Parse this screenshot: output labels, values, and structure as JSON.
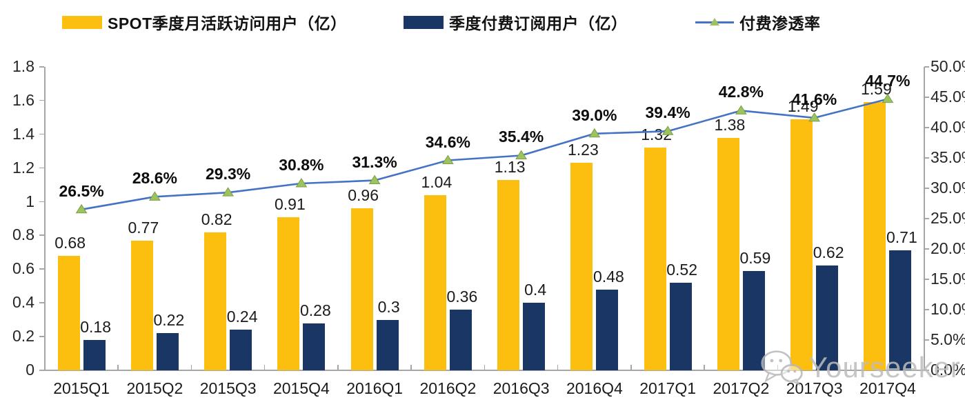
{
  "legend": {
    "items": [
      {
        "label": "SPOT季度月活跃访问用户（亿）",
        "swatch": "bar",
        "color": "#FCBF10"
      },
      {
        "label": "季度付费订阅用户（亿）",
        "swatch": "bar",
        "color": "#1A3665"
      },
      {
        "label": "付费渗透率",
        "swatch": "line",
        "line_color": "#4472C4",
        "marker": "triangle-up",
        "marker_color": "#9DC360"
      }
    ]
  },
  "chart_data": {
    "type": "combo-bar-line",
    "categories": [
      "2015Q1",
      "2015Q2",
      "2015Q3",
      "2015Q4",
      "2016Q1",
      "2016Q2",
      "2016Q3",
      "2016Q4",
      "2017Q1",
      "2017Q2",
      "2017Q3",
      "2017Q4"
    ],
    "series": [
      {
        "name": "SPOT季度月活跃访问用户（亿）",
        "type": "bar",
        "axis": "left",
        "color": "#FCBF10",
        "values": [
          0.68,
          0.77,
          0.82,
          0.91,
          0.96,
          1.04,
          1.13,
          1.23,
          1.32,
          1.38,
          1.49,
          1.59
        ],
        "labels": [
          "0.68",
          "0.77",
          "0.82",
          "0.91",
          "0.96",
          "1.04",
          "1.13",
          "1.23",
          "1.32",
          "1.38",
          "1.49",
          "1.59"
        ]
      },
      {
        "name": "季度付费订阅用户（亿）",
        "type": "bar",
        "axis": "left",
        "color": "#1A3665",
        "values": [
          0.18,
          0.22,
          0.24,
          0.28,
          0.3,
          0.36,
          0.4,
          0.48,
          0.52,
          0.59,
          0.62,
          0.71
        ],
        "labels": [
          "0.18",
          "0.22",
          "0.24",
          "0.28",
          "0.3",
          "0.36",
          "0.4",
          "0.48",
          "0.52",
          "0.59",
          "0.62",
          "0.71"
        ]
      },
      {
        "name": "付费渗透率",
        "type": "line",
        "axis": "right",
        "color": "#4472C4",
        "marker_color": "#9DC360",
        "values": [
          26.5,
          28.6,
          29.3,
          30.8,
          31.3,
          34.6,
          35.4,
          39.0,
          39.4,
          42.8,
          41.6,
          44.7
        ],
        "labels": [
          "26.5%",
          "28.6%",
          "29.3%",
          "30.8%",
          "31.3%",
          "34.6%",
          "35.4%",
          "39.0%",
          "39.4%",
          "42.8%",
          "41.6%",
          "44.7%"
        ]
      }
    ],
    "left_axis": {
      "min": 0,
      "max": 1.8,
      "tick_labels": [
        "0",
        "0.2",
        "0.4",
        "0.6",
        "0.8",
        "1",
        "1.2",
        "1.4",
        "1.6",
        "1.8"
      ]
    },
    "right_axis": {
      "min": 0,
      "max": 50,
      "tick_labels": [
        "0.0%",
        "5.0%",
        "10.0%",
        "15.0%",
        "20.0%",
        "25.0%",
        "30.0%",
        "35.0%",
        "40.0%",
        "45.0%",
        "50.0%"
      ]
    },
    "grid": false,
    "legend_position": "top"
  },
  "watermark": {
    "text": "Yourseeker",
    "icon": "wechat-icon"
  },
  "colors": {
    "bar_mau": "#FCBF10",
    "bar_subscribers": "#1A3665",
    "penetration_line": "#4472C4",
    "marker_green": "#9DC360",
    "axis_gray": "#A6A6A6",
    "watermark_gray": "#BDBDBD"
  }
}
